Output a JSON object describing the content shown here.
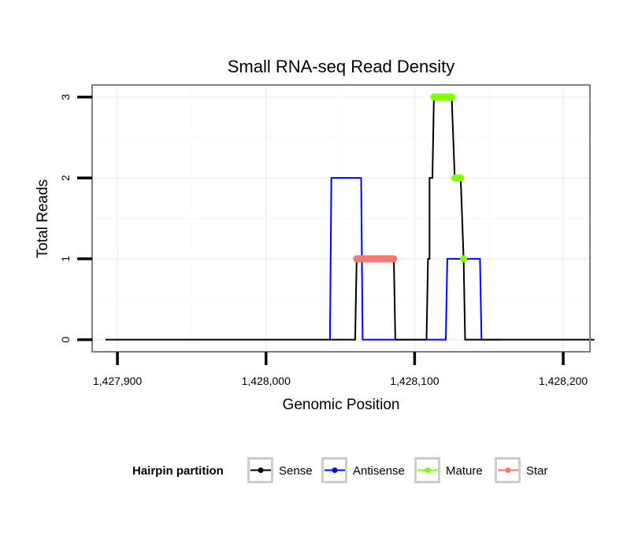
{
  "chart_data": {
    "type": "line",
    "title": "Small RNA-seq Read Density",
    "xlabel": "Genomic Position",
    "ylabel": "Total Reads",
    "xlim": [
      1427883,
      1428218
    ],
    "ylim": [
      -0.15,
      3.15
    ],
    "x_ticks": [
      1427900,
      1428000,
      1428100,
      1428200
    ],
    "x_tick_labels": [
      "1,427,900",
      "1,428,000",
      "1,428,100",
      "1,428,200"
    ],
    "y_ticks": [
      0,
      1,
      2,
      3
    ],
    "y_tick_labels": [
      "0",
      "1",
      "2",
      "3"
    ],
    "grid": true,
    "legend": {
      "title": "Hairpin partition",
      "position": "bottom",
      "entries": [
        "Sense",
        "Antisense",
        "Mature",
        "Star"
      ]
    },
    "series": [
      {
        "name": "Sense",
        "color": "#000000",
        "points": [
          [
            1427892,
            0
          ],
          [
            1428060,
            0
          ],
          [
            1428061,
            1
          ],
          [
            1428086,
            1
          ],
          [
            1428087,
            0
          ],
          [
            1428108,
            0
          ],
          [
            1428109,
            1
          ],
          [
            1428110,
            1
          ],
          [
            1428110,
            2
          ],
          [
            1428112,
            2
          ],
          [
            1428113,
            3
          ],
          [
            1428125,
            3
          ],
          [
            1428127,
            2
          ],
          [
            1428131,
            2
          ],
          [
            1428133,
            1
          ],
          [
            1428134,
            0
          ],
          [
            1428221,
            0
          ]
        ]
      },
      {
        "name": "Antisense",
        "color": "#0000ff",
        "points": [
          [
            1428043,
            0
          ],
          [
            1428044,
            2
          ],
          [
            1428064,
            2
          ],
          [
            1428065,
            0
          ],
          [
            1428121,
            0
          ],
          [
            1428122,
            1
          ],
          [
            1428144,
            1
          ],
          [
            1428145,
            0
          ],
          [
            1428159,
            0
          ]
        ]
      },
      {
        "name": "Mature",
        "color": "#7fff00",
        "segments": [
          {
            "x": [
              1428113,
              1428125
            ],
            "y": 3
          },
          {
            "x": [
              1428127,
              1428131
            ],
            "y": 2
          },
          {
            "x": [
              1428133,
              1428133
            ],
            "y": 1
          }
        ]
      },
      {
        "name": "Star",
        "color": "#f8766d",
        "segments": [
          {
            "x": [
              1428061,
              1428086
            ],
            "y": 1
          }
        ]
      }
    ]
  }
}
